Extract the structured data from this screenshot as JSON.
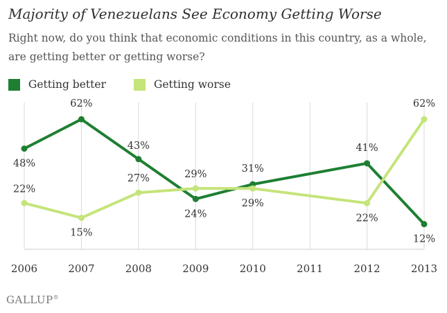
{
  "chart_data": {
    "type": "line",
    "title": "Majority of Venezuelans See Economy Getting Worse",
    "subtitle": "Right now, do you think that economic conditions in this country, as a whole, are getting better or getting worse?",
    "x": [
      "2006",
      "2007",
      "2008",
      "2009",
      "2010",
      "2011",
      "2012",
      "2013"
    ],
    "series": [
      {
        "name": "Getting better",
        "color": "#1e7f32",
        "values": [
          48,
          62,
          43,
          24,
          31,
          null,
          41,
          12
        ],
        "labels": [
          "48%",
          "62%",
          "43%",
          "24%",
          "31%",
          "",
          "41%",
          "12%"
        ]
      },
      {
        "name": "Getting worse",
        "color": "#c5e47a",
        "values": [
          22,
          15,
          27,
          29,
          29,
          null,
          22,
          62
        ],
        "labels": [
          "22%",
          "15%",
          "27%",
          "29%",
          "29%",
          "",
          "22%",
          "62%"
        ]
      }
    ],
    "ylim": [
      0,
      70
    ],
    "xlabel": "",
    "ylabel": ""
  },
  "footer": {
    "brand": "GALLUP",
    "mark": "®"
  }
}
